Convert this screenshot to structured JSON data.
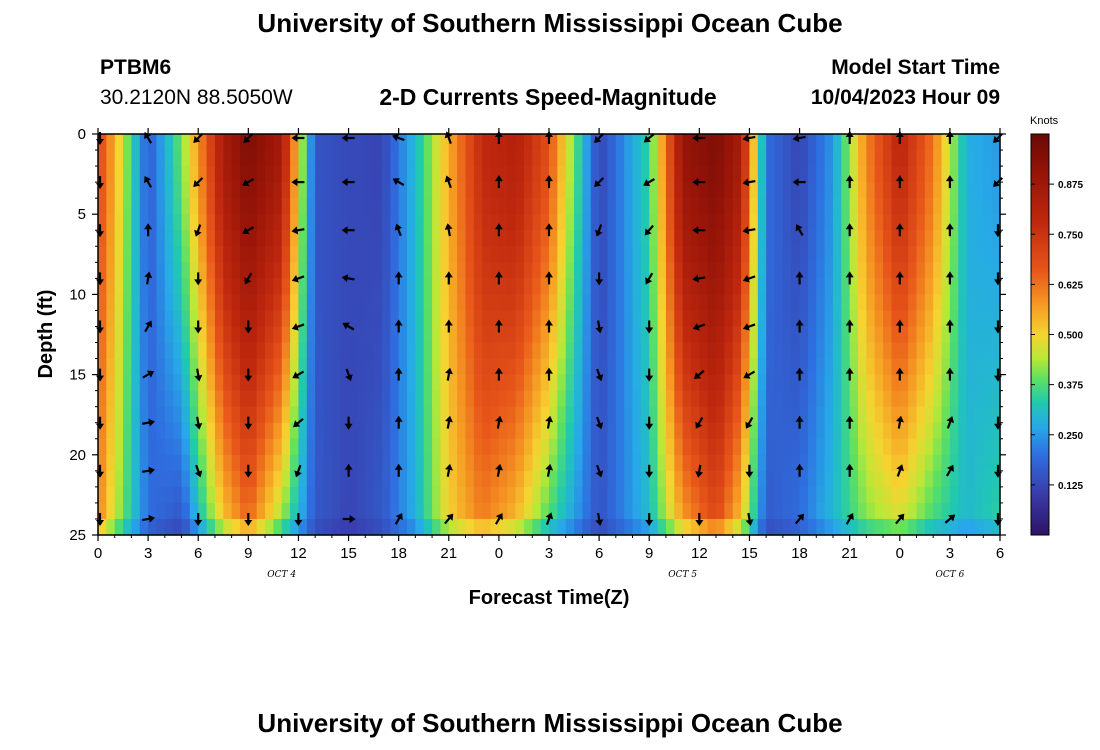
{
  "header": {
    "title": "University of Southern Mississippi Ocean Cube",
    "station_id": "PTBM6",
    "station_coords": "30.2120N  88.5050W",
    "plot_title": "2-D Currents Speed-Magnitude",
    "model_start_label": "Model Start Time",
    "model_start_value": "10/04/2023 Hour 09"
  },
  "footer": {
    "title": "University of Southern Mississippi Ocean Cube"
  },
  "chart_data": {
    "type": "heatmap",
    "title": "2-D Currents Speed-Magnitude",
    "xlabel": "Forecast Time(Z)",
    "ylabel": "Depth (ft)",
    "x_ticks": [
      "0",
      "3",
      "6",
      "9",
      "12",
      "15",
      "18",
      "21",
      "0",
      "3",
      "6",
      "9",
      "12",
      "15",
      "18",
      "21",
      "0",
      "3",
      "6"
    ],
    "x_range_hours": [
      0,
      54
    ],
    "y_ticks": [
      "0",
      "5",
      "10",
      "15",
      "20",
      "25"
    ],
    "y_range_ft": [
      0,
      25
    ],
    "date_labels": [
      {
        "label": "OCT 4",
        "hour": 11
      },
      {
        "label": "OCT 5",
        "hour": 35
      },
      {
        "label": "OCT 6",
        "hour": 51
      }
    ],
    "colorbar": {
      "unit": "Knots",
      "range": [
        0,
        1
      ],
      "ticks": [
        "0.125",
        "0.250",
        "0.375",
        "0.500",
        "0.625",
        "0.750",
        "0.875"
      ]
    },
    "speed_profile": {
      "hours": [
        0,
        1,
        3,
        5,
        7.5,
        9,
        11,
        13,
        15,
        17,
        19,
        21,
        23,
        25,
        27,
        30,
        33,
        35,
        37,
        38.5,
        40,
        42,
        44,
        46,
        48,
        50,
        52,
        54
      ],
      "surface_knots": [
        0.7,
        0.55,
        0.16,
        0.4,
        0.85,
        0.95,
        0.86,
        0.15,
        0.13,
        0.12,
        0.3,
        0.55,
        0.78,
        0.82,
        0.68,
        0.12,
        0.35,
        0.9,
        0.95,
        0.85,
        0.2,
        0.12,
        0.25,
        0.6,
        0.8,
        0.62,
        0.28,
        0.25
      ],
      "bottom_knots": [
        0.6,
        0.45,
        0.2,
        0.14,
        0.5,
        0.62,
        0.4,
        0.16,
        0.12,
        0.16,
        0.28,
        0.5,
        0.6,
        0.52,
        0.35,
        0.15,
        0.3,
        0.55,
        0.68,
        0.5,
        0.16,
        0.2,
        0.3,
        0.4,
        0.45,
        0.35,
        0.3,
        0.35
      ]
    },
    "arrow_depths_ft": [
      0,
      3,
      6,
      9,
      12,
      15,
      18,
      21,
      24
    ],
    "arrow_columns": [
      {
        "hour": 0,
        "deg": [
          180,
          180,
          180,
          180,
          180,
          180,
          180,
          180,
          180
        ]
      },
      {
        "hour": 3,
        "deg": [
          -30,
          -30,
          0,
          10,
          30,
          60,
          80,
          80,
          80
        ]
      },
      {
        "hour": 6,
        "deg": [
          -135,
          -135,
          -160,
          180,
          180,
          170,
          170,
          160,
          180
        ]
      },
      {
        "hour": 9,
        "deg": [
          -135,
          -120,
          -120,
          -150,
          180,
          180,
          180,
          180,
          180
        ]
      },
      {
        "hour": 12,
        "deg": [
          -90,
          -90,
          -100,
          -110,
          -110,
          -120,
          -130,
          -160,
          180
        ]
      },
      {
        "hour": 15,
        "deg": [
          -90,
          -90,
          -90,
          -80,
          -60,
          160,
          180,
          0,
          90
        ]
      },
      {
        "hour": 18,
        "deg": [
          -70,
          -60,
          -20,
          0,
          0,
          0,
          0,
          0,
          30
        ]
      },
      {
        "hour": 21,
        "deg": [
          -20,
          -20,
          -10,
          0,
          0,
          10,
          10,
          10,
          40
        ]
      },
      {
        "hour": 24,
        "deg": [
          0,
          0,
          0,
          0,
          0,
          0,
          10,
          10,
          30
        ]
      },
      {
        "hour": 27,
        "deg": [
          0,
          0,
          0,
          0,
          0,
          0,
          10,
          10,
          20
        ]
      },
      {
        "hour": 30,
        "deg": [
          -135,
          -135,
          -160,
          180,
          170,
          160,
          160,
          160,
          170
        ]
      },
      {
        "hour": 33,
        "deg": [
          -130,
          -120,
          -140,
          -150,
          180,
          180,
          180,
          180,
          180
        ]
      },
      {
        "hour": 36,
        "deg": [
          -90,
          -90,
          -90,
          -100,
          -110,
          -130,
          -150,
          -170,
          180
        ]
      },
      {
        "hour": 39,
        "deg": [
          -100,
          -100,
          -100,
          -110,
          -110,
          -120,
          -150,
          180,
          170
        ]
      },
      {
        "hour": 42,
        "deg": [
          -100,
          -90,
          -30,
          0,
          0,
          0,
          0,
          0,
          40
        ]
      },
      {
        "hour": 45,
        "deg": [
          0,
          0,
          0,
          0,
          0,
          0,
          0,
          0,
          30
        ]
      },
      {
        "hour": 48,
        "deg": [
          0,
          0,
          0,
          0,
          0,
          0,
          10,
          20,
          40
        ]
      },
      {
        "hour": 51,
        "deg": [
          0,
          0,
          0,
          0,
          0,
          0,
          20,
          30,
          50
        ]
      },
      {
        "hour": 54,
        "deg": [
          -135,
          -135,
          180,
          180,
          180,
          180,
          180,
          180,
          180
        ]
      }
    ]
  }
}
